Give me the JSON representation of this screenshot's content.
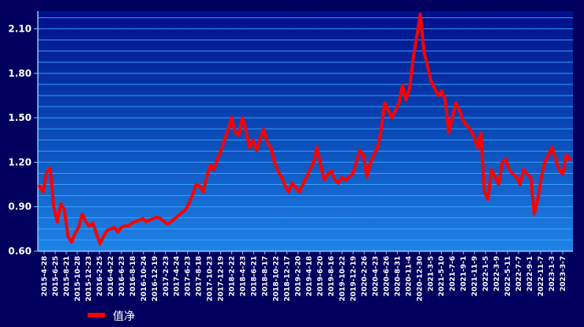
{
  "chart_data": {
    "type": "line",
    "y_ticks": [
      "2.10",
      "1.80",
      "1.50",
      "1.20",
      "0.90",
      "0.60"
    ],
    "ylim": [
      0.6,
      2.22
    ],
    "x_ticks": [
      "2015-4-28",
      "2015-6-25",
      "2015-8-21",
      "2015-10-28",
      "2015-12-23",
      "2016-2-25",
      "2016-4-22",
      "2016-6-23",
      "2016-8-18",
      "2016-10-24",
      "2016-12-19",
      "2017-2-23",
      "2017-4-24",
      "2017-6-23",
      "2017-8-18",
      "2017-10-23",
      "2017-12-19",
      "2018-2-22",
      "2018-4-23",
      "2018-6-21",
      "2018-8-17",
      "2018-10-22",
      "2018-12-17",
      "2019-2-20",
      "2019-4-18",
      "2019-6-20",
      "2019-8-16",
      "2019-10-22",
      "2019-12-19",
      "2020-2-26",
      "2020-4-23",
      "2020-6-26",
      "2020-8-31",
      "2020-11-4",
      "2020-12-30",
      "2021-3-5",
      "2021-5-10",
      "2021-7-6",
      "2021-9-1",
      "2021-11-9",
      "2022-1-5",
      "2022-3-9",
      "2022-5-11",
      "2022-7-7",
      "2022-9-1",
      "2022-11-7",
      "2023-1-3",
      "2023-3-7"
    ],
    "series": [
      {
        "name": "值净",
        "color": "#ff0000",
        "values": [
          1.04,
          1.0,
          1.13,
          1.16,
          0.9,
          0.8,
          0.92,
          0.88,
          0.7,
          0.66,
          0.72,
          0.76,
          0.85,
          0.8,
          0.77,
          0.79,
          0.72,
          0.65,
          0.7,
          0.74,
          0.75,
          0.76,
          0.73,
          0.76,
          0.77,
          0.77,
          0.79,
          0.8,
          0.81,
          0.82,
          0.8,
          0.81,
          0.82,
          0.83,
          0.82,
          0.8,
          0.78,
          0.8,
          0.82,
          0.84,
          0.86,
          0.88,
          0.92,
          0.98,
          1.05,
          1.04,
          1.0,
          1.1,
          1.18,
          1.15,
          1.22,
          1.28,
          1.35,
          1.42,
          1.5,
          1.4,
          1.38,
          1.5,
          1.42,
          1.3,
          1.35,
          1.28,
          1.36,
          1.42,
          1.33,
          1.3,
          1.2,
          1.14,
          1.1,
          1.04,
          1.0,
          1.06,
          1.03,
          1.0,
          1.05,
          1.1,
          1.15,
          1.2,
          1.3,
          1.18,
          1.08,
          1.12,
          1.14,
          1.08,
          1.06,
          1.1,
          1.08,
          1.1,
          1.12,
          1.2,
          1.28,
          1.25,
          1.1,
          1.2,
          1.25,
          1.3,
          1.42,
          1.6,
          1.55,
          1.5,
          1.55,
          1.6,
          1.72,
          1.62,
          1.7,
          1.9,
          2.05,
          2.2,
          1.95,
          1.85,
          1.75,
          1.7,
          1.65,
          1.68,
          1.62,
          1.4,
          1.5,
          1.6,
          1.55,
          1.48,
          1.45,
          1.42,
          1.38,
          1.3,
          1.4,
          1.0,
          0.95,
          1.15,
          1.1,
          1.05,
          1.2,
          1.22,
          1.15,
          1.12,
          1.1,
          1.05,
          1.15,
          1.12,
          1.1,
          0.85,
          0.95,
          1.1,
          1.2,
          1.25,
          1.3,
          1.22,
          1.15,
          1.12,
          1.25,
          1.22
        ]
      }
    ],
    "legend": {
      "position": "bottom-left",
      "label": "值净"
    },
    "grid": true
  }
}
